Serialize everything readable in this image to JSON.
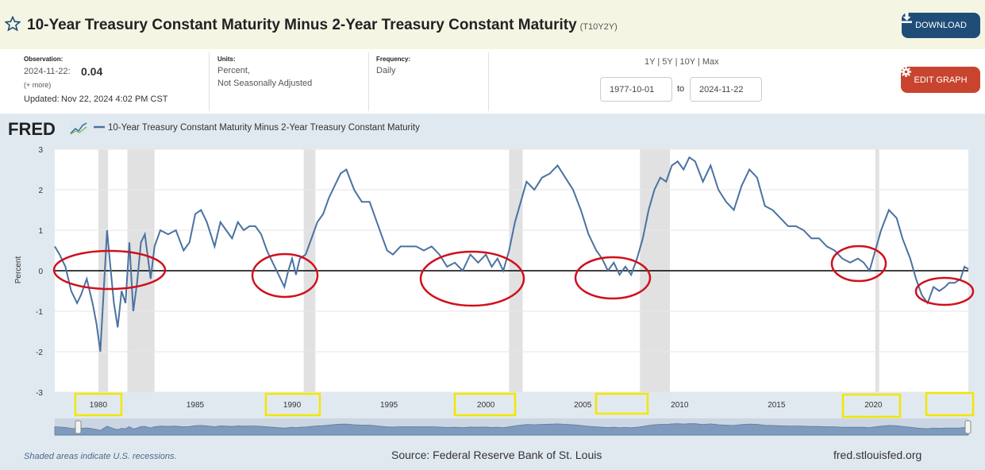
{
  "header": {
    "title": "10-Year Treasury Constant Maturity Minus 2-Year Treasury Constant Maturity",
    "series_code": "(T10Y2Y)",
    "download_label": "DOWNLOAD"
  },
  "observation": {
    "label": "Observation:",
    "date": "2024-11-22:",
    "value": "0.04",
    "more": "(+ more)",
    "updated_label": "Updated:",
    "updated": "Nov 22, 2024 4:02 PM CST"
  },
  "units": {
    "label": "Units:",
    "line1": "Percent,",
    "line2": "Not Seasonally Adjusted"
  },
  "frequency": {
    "label": "Frequency:",
    "value": "Daily"
  },
  "range": {
    "links": [
      "1Y",
      "5Y",
      "10Y",
      "Max"
    ],
    "from": "1977-10-01",
    "to_label": "to",
    "to": "2024-11-22"
  },
  "edit_label": "EDIT GRAPH",
  "footer": {
    "recession_note": "Shaded areas indicate U.S. recessions.",
    "source": "Source: Federal Reserve Bank of St. Louis",
    "site": "fred.stlouisfed.org"
  },
  "colors": {
    "series": "#4a72a2",
    "recession": "#e1e1e1",
    "annotation_circle": "#d0101c",
    "annotation_box": "#f2e600",
    "chart_bg": "#e1e9f0"
  },
  "chart_data": {
    "type": "line",
    "logo_text": "FRED",
    "ylabel": "Percent",
    "xlim": [
      1977.75,
      2024.9
    ],
    "ylim": [
      -3,
      3
    ],
    "yticks": [
      3,
      2,
      1,
      0,
      -1,
      -2,
      -3
    ],
    "xticks": [
      {
        "year": 1980,
        "label": "1980"
      },
      {
        "year": 1985,
        "label": "1985"
      },
      {
        "year": 1990,
        "label": "1990"
      },
      {
        "year": 1995,
        "label": "1995"
      },
      {
        "year": 2000,
        "label": "2000"
      },
      {
        "year": 2005,
        "label": "2005"
      },
      {
        "year": 2010,
        "label": "2010"
      },
      {
        "year": 2015,
        "label": "2015"
      },
      {
        "year": 2020,
        "label": "2020"
      }
    ],
    "recessions": [
      [
        1980.0,
        1980.5
      ],
      [
        1981.5,
        1982.9
      ],
      [
        1990.6,
        1991.2
      ],
      [
        2001.2,
        2001.9
      ],
      [
        2007.95,
        2009.5
      ],
      [
        2020.1,
        2020.3
      ]
    ],
    "series": [
      {
        "name": "10-Year Treasury Constant Maturity Minus 2-Year Treasury Constant Maturity",
        "x": [
          1977.75,
          1978.0,
          1978.3,
          1978.6,
          1978.9,
          1979.1,
          1979.4,
          1979.7,
          1979.9,
          1980.1,
          1980.3,
          1980.45,
          1980.6,
          1980.8,
          1981.0,
          1981.2,
          1981.4,
          1981.6,
          1981.8,
          1982.0,
          1982.2,
          1982.4,
          1982.7,
          1982.9,
          1983.2,
          1983.6,
          1984.0,
          1984.4,
          1984.7,
          1985.0,
          1985.3,
          1985.6,
          1986.0,
          1986.3,
          1986.6,
          1986.9,
          1987.2,
          1987.5,
          1987.8,
          1988.1,
          1988.4,
          1988.7,
          1989.0,
          1989.3,
          1989.6,
          1989.8,
          1990.0,
          1990.2,
          1990.4,
          1990.7,
          1991.0,
          1991.3,
          1991.6,
          1991.9,
          1992.2,
          1992.5,
          1992.8,
          1993.2,
          1993.6,
          1994.0,
          1994.3,
          1994.6,
          1994.9,
          1995.2,
          1995.6,
          1996.0,
          1996.4,
          1996.8,
          1997.2,
          1997.6,
          1998.0,
          1998.4,
          1998.8,
          1999.2,
          1999.6,
          2000.0,
          2000.3,
          2000.6,
          2000.9,
          2001.2,
          2001.5,
          2001.8,
          2002.1,
          2002.5,
          2002.9,
          2003.3,
          2003.7,
          2004.1,
          2004.5,
          2004.9,
          2005.3,
          2005.7,
          2006.0,
          2006.3,
          2006.6,
          2006.9,
          2007.2,
          2007.5,
          2007.8,
          2008.1,
          2008.4,
          2008.7,
          2009.0,
          2009.3,
          2009.6,
          2009.9,
          2010.2,
          2010.5,
          2010.8,
          2011.2,
          2011.6,
          2012.0,
          2012.4,
          2012.8,
          2013.2,
          2013.6,
          2014.0,
          2014.4,
          2014.8,
          2015.2,
          2015.6,
          2016.0,
          2016.4,
          2016.8,
          2017.2,
          2017.6,
          2018.0,
          2018.4,
          2018.8,
          2019.2,
          2019.5,
          2019.8,
          2020.1,
          2020.4,
          2020.8,
          2021.2,
          2021.5,
          2021.9,
          2022.2,
          2022.5,
          2022.8,
          2023.1,
          2023.4,
          2023.7,
          2023.9,
          2024.2,
          2024.5,
          2024.7,
          2024.9
        ],
        "y": [
          0.6,
          0.4,
          0.1,
          -0.5,
          -0.8,
          -0.6,
          -0.2,
          -0.8,
          -1.3,
          -2.0,
          -0.3,
          1.0,
          0.2,
          -0.8,
          -1.4,
          -0.5,
          -0.8,
          0.7,
          -1.0,
          -0.3,
          0.7,
          0.9,
          -0.2,
          0.6,
          1.0,
          0.9,
          1.0,
          0.5,
          0.7,
          1.4,
          1.5,
          1.2,
          0.6,
          1.2,
          1.0,
          0.8,
          1.2,
          1.0,
          1.1,
          1.1,
          0.9,
          0.5,
          0.2,
          -0.1,
          -0.4,
          0.0,
          0.3,
          -0.1,
          0.3,
          0.4,
          0.8,
          1.2,
          1.4,
          1.8,
          2.1,
          2.4,
          2.5,
          2.0,
          1.7,
          1.7,
          1.3,
          0.9,
          0.5,
          0.4,
          0.6,
          0.6,
          0.6,
          0.5,
          0.6,
          0.4,
          0.1,
          0.2,
          0.0,
          0.4,
          0.2,
          0.4,
          0.1,
          0.3,
          0.0,
          0.5,
          1.2,
          1.7,
          2.2,
          2.0,
          2.3,
          2.4,
          2.6,
          2.3,
          2.0,
          1.5,
          0.9,
          0.5,
          0.3,
          0.0,
          0.2,
          -0.1,
          0.1,
          -0.1,
          0.3,
          0.8,
          1.5,
          2.0,
          2.3,
          2.2,
          2.6,
          2.7,
          2.5,
          2.8,
          2.7,
          2.2,
          2.6,
          2.0,
          1.7,
          1.5,
          2.1,
          2.5,
          2.3,
          1.6,
          1.5,
          1.3,
          1.1,
          1.1,
          1.0,
          0.8,
          0.8,
          0.6,
          0.5,
          0.3,
          0.2,
          0.3,
          0.2,
          0.0,
          0.5,
          1.0,
          1.5,
          1.3,
          0.8,
          0.3,
          -0.2,
          -0.6,
          -0.8,
          -0.4,
          -0.5,
          -0.4,
          -0.3,
          -0.3,
          -0.2,
          0.1,
          0.04
        ]
      }
    ]
  }
}
